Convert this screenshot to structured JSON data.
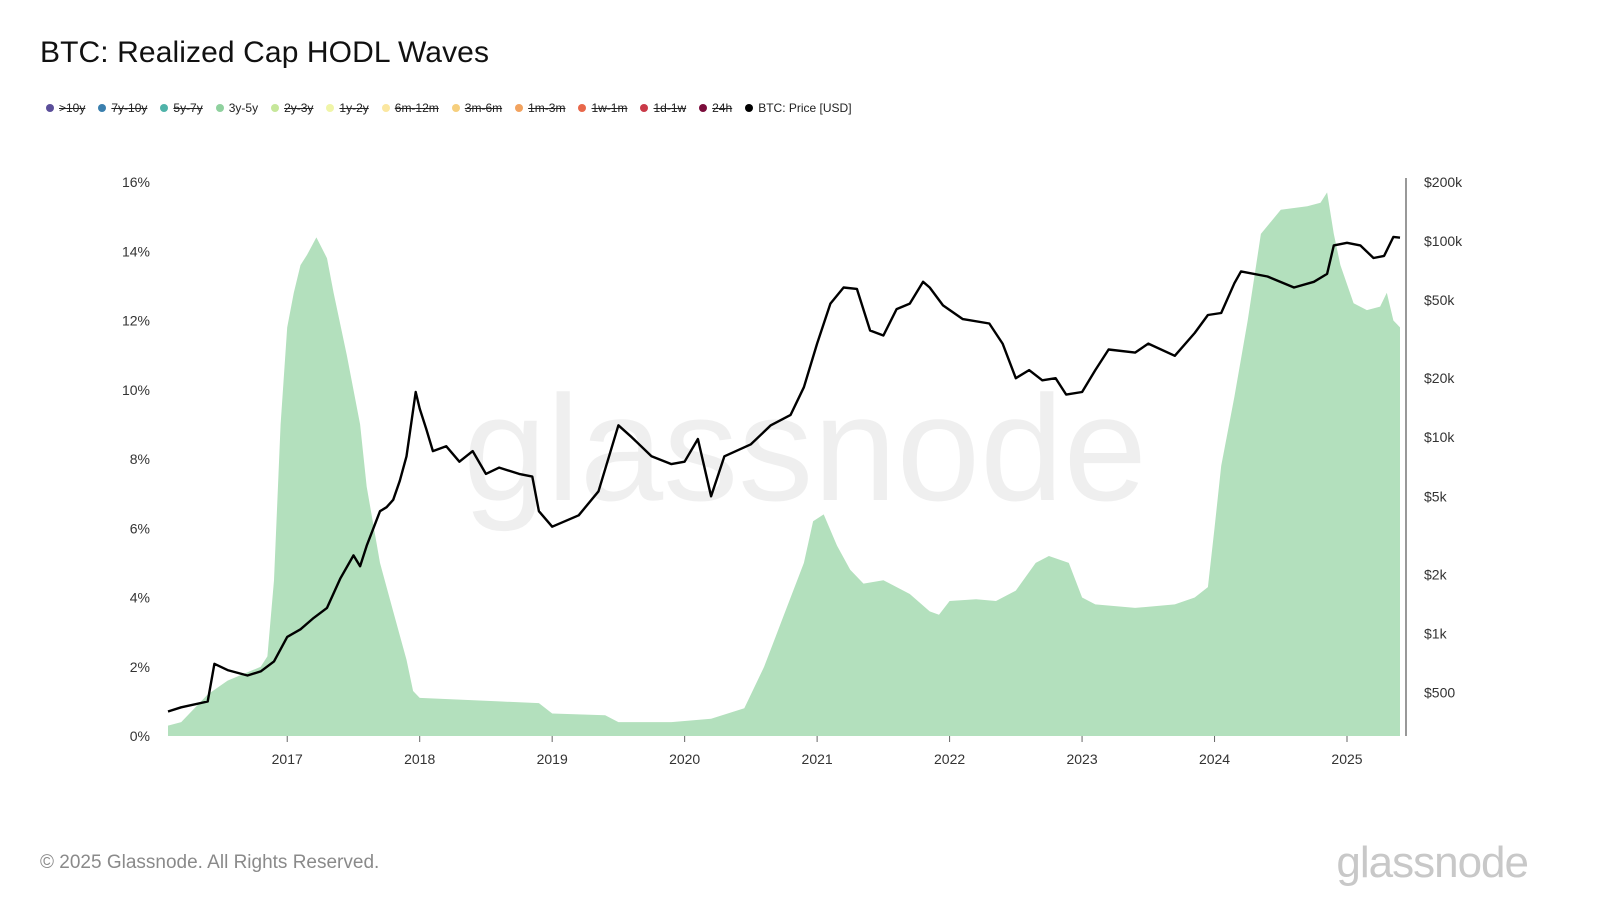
{
  "page": {
    "title": "BTC: Realized Cap HODL Waves",
    "footer": "© 2025 Glassnode. All Rights Reserved.",
    "brand": "glassnode",
    "watermark": "glassnode"
  },
  "legend": [
    {
      "label": ">10y",
      "color": "#5b4f9a",
      "active": false
    },
    {
      "label": "7y-10y",
      "color": "#3a7fae",
      "active": false
    },
    {
      "label": "5y-7y",
      "color": "#4fb3a9",
      "active": false
    },
    {
      "label": "3y-5y",
      "color": "#8fd19e",
      "active": true
    },
    {
      "label": "2y-3y",
      "color": "#c6e79a",
      "active": false
    },
    {
      "label": "1y-2y",
      "color": "#f0f5a8",
      "active": false
    },
    {
      "label": "6m-12m",
      "color": "#fbe7a0",
      "active": false
    },
    {
      "label": "3m-6m",
      "color": "#f6cf7d",
      "active": false
    },
    {
      "label": "1m-3m",
      "color": "#f2a35f",
      "active": false
    },
    {
      "label": "1w-1m",
      "color": "#e8674a",
      "active": false
    },
    {
      "label": "1d-1w",
      "color": "#c93a48",
      "active": false
    },
    {
      "label": "24h",
      "color": "#7a0c3b",
      "active": false
    },
    {
      "label": "BTC: Price [USD]",
      "color": "#000000",
      "active": true
    }
  ],
  "chart_data": {
    "type": "area",
    "x_range": [
      2016.1,
      2025.4
    ],
    "x_ticks": [
      2017,
      2018,
      2019,
      2020,
      2021,
      2022,
      2023,
      2024,
      2025
    ],
    "x_tick_labels": [
      "2017",
      "2018",
      "2019",
      "2020",
      "2021",
      "2022",
      "2023",
      "2024",
      "2025"
    ],
    "y_left": {
      "range": [
        0,
        16
      ],
      "ticks": [
        0,
        2,
        4,
        6,
        8,
        10,
        12,
        14,
        16
      ],
      "tick_labels": [
        "0%",
        "2%",
        "4%",
        "6%",
        "8%",
        "10%",
        "12%",
        "14%",
        "16%"
      ]
    },
    "y_right": {
      "scale": "log",
      "range": [
        300,
        200000
      ],
      "ticks": [
        500,
        1000,
        2000,
        5000,
        10000,
        20000,
        50000,
        100000,
        200000
      ],
      "tick_labels": [
        "$500",
        "$1k",
        "$2k",
        "$5k",
        "$10k",
        "$20k",
        "$50k",
        "$100k",
        "$200k"
      ]
    },
    "series": [
      {
        "name": "3y-5y",
        "axis": "left",
        "color": "#b3e0bd",
        "points": [
          [
            2016.1,
            0.3
          ],
          [
            2016.2,
            0.4
          ],
          [
            2016.4,
            1.2
          ],
          [
            2016.55,
            1.6
          ],
          [
            2016.8,
            2.0
          ],
          [
            2016.85,
            2.3
          ],
          [
            2016.9,
            4.5
          ],
          [
            2016.95,
            9.0
          ],
          [
            2017.0,
            11.8
          ],
          [
            2017.05,
            12.8
          ],
          [
            2017.1,
            13.6
          ],
          [
            2017.15,
            13.9
          ],
          [
            2017.22,
            14.4
          ],
          [
            2017.3,
            13.8
          ],
          [
            2017.35,
            12.8
          ],
          [
            2017.45,
            11.0
          ],
          [
            2017.55,
            9.0
          ],
          [
            2017.6,
            7.2
          ],
          [
            2017.7,
            5.0
          ],
          [
            2017.8,
            3.6
          ],
          [
            2017.9,
            2.2
          ],
          [
            2017.95,
            1.3
          ],
          [
            2018.0,
            1.1
          ],
          [
            2018.3,
            1.05
          ],
          [
            2018.6,
            1.0
          ],
          [
            2018.9,
            0.95
          ],
          [
            2019.0,
            0.65
          ],
          [
            2019.4,
            0.6
          ],
          [
            2019.5,
            0.4
          ],
          [
            2019.9,
            0.4
          ],
          [
            2020.2,
            0.5
          ],
          [
            2020.45,
            0.8
          ],
          [
            2020.6,
            2.0
          ],
          [
            2020.75,
            3.5
          ],
          [
            2020.9,
            5.0
          ],
          [
            2020.97,
            6.2
          ],
          [
            2021.05,
            6.4
          ],
          [
            2021.15,
            5.5
          ],
          [
            2021.25,
            4.8
          ],
          [
            2021.35,
            4.4
          ],
          [
            2021.5,
            4.5
          ],
          [
            2021.7,
            4.1
          ],
          [
            2021.85,
            3.6
          ],
          [
            2021.92,
            3.5
          ],
          [
            2022.0,
            3.9
          ],
          [
            2022.2,
            3.95
          ],
          [
            2022.35,
            3.9
          ],
          [
            2022.5,
            4.2
          ],
          [
            2022.65,
            5.0
          ],
          [
            2022.75,
            5.2
          ],
          [
            2022.9,
            5.0
          ],
          [
            2023.0,
            4.0
          ],
          [
            2023.1,
            3.8
          ],
          [
            2023.4,
            3.7
          ],
          [
            2023.7,
            3.8
          ],
          [
            2023.85,
            4.0
          ],
          [
            2023.95,
            4.3
          ],
          [
            2024.0,
            6.0
          ],
          [
            2024.05,
            7.8
          ],
          [
            2024.15,
            9.8
          ],
          [
            2024.25,
            12.0
          ],
          [
            2024.35,
            14.5
          ],
          [
            2024.5,
            15.2
          ],
          [
            2024.7,
            15.3
          ],
          [
            2024.8,
            15.4
          ],
          [
            2024.85,
            15.7
          ],
          [
            2024.9,
            14.5
          ],
          [
            2024.95,
            13.6
          ],
          [
            2025.05,
            12.5
          ],
          [
            2025.15,
            12.3
          ],
          [
            2025.25,
            12.4
          ],
          [
            2025.3,
            12.8
          ],
          [
            2025.35,
            12.0
          ],
          [
            2025.4,
            11.8
          ]
        ]
      },
      {
        "name": "BTC: Price [USD]",
        "axis": "right",
        "color": "#000000",
        "points": [
          [
            2016.1,
            400
          ],
          [
            2016.2,
            420
          ],
          [
            2016.4,
            450
          ],
          [
            2016.45,
            700
          ],
          [
            2016.55,
            650
          ],
          [
            2016.7,
            610
          ],
          [
            2016.8,
            640
          ],
          [
            2016.9,
            720
          ],
          [
            2017.0,
            960
          ],
          [
            2017.1,
            1050
          ],
          [
            2017.2,
            1200
          ],
          [
            2017.3,
            1350
          ],
          [
            2017.4,
            1900
          ],
          [
            2017.5,
            2500
          ],
          [
            2017.55,
            2200
          ],
          [
            2017.6,
            2800
          ],
          [
            2017.7,
            4200
          ],
          [
            2017.75,
            4400
          ],
          [
            2017.8,
            4800
          ],
          [
            2017.85,
            6000
          ],
          [
            2017.9,
            8000
          ],
          [
            2017.97,
            17000
          ],
          [
            2018.0,
            14000
          ],
          [
            2018.05,
            11000
          ],
          [
            2018.1,
            8500
          ],
          [
            2018.2,
            9000
          ],
          [
            2018.3,
            7500
          ],
          [
            2018.4,
            8500
          ],
          [
            2018.5,
            6500
          ],
          [
            2018.6,
            7000
          ],
          [
            2018.75,
            6500
          ],
          [
            2018.85,
            6300
          ],
          [
            2018.9,
            4200
          ],
          [
            2019.0,
            3500
          ],
          [
            2019.2,
            4000
          ],
          [
            2019.35,
            5300
          ],
          [
            2019.5,
            11500
          ],
          [
            2019.6,
            10000
          ],
          [
            2019.75,
            8000
          ],
          [
            2019.9,
            7300
          ],
          [
            2020.0,
            7500
          ],
          [
            2020.1,
            9800
          ],
          [
            2020.2,
            5000
          ],
          [
            2020.3,
            8000
          ],
          [
            2020.5,
            9200
          ],
          [
            2020.65,
            11500
          ],
          [
            2020.8,
            13000
          ],
          [
            2020.9,
            18000
          ],
          [
            2021.0,
            30000
          ],
          [
            2021.1,
            48000
          ],
          [
            2021.2,
            58000
          ],
          [
            2021.3,
            57000
          ],
          [
            2021.4,
            35000
          ],
          [
            2021.5,
            33000
          ],
          [
            2021.6,
            45000
          ],
          [
            2021.7,
            48000
          ],
          [
            2021.8,
            62000
          ],
          [
            2021.85,
            58000
          ],
          [
            2021.95,
            47000
          ],
          [
            2022.1,
            40000
          ],
          [
            2022.3,
            38000
          ],
          [
            2022.4,
            30000
          ],
          [
            2022.5,
            20000
          ],
          [
            2022.6,
            22000
          ],
          [
            2022.7,
            19500
          ],
          [
            2022.8,
            20000
          ],
          [
            2022.88,
            16500
          ],
          [
            2023.0,
            17000
          ],
          [
            2023.1,
            22000
          ],
          [
            2023.2,
            28000
          ],
          [
            2023.4,
            27000
          ],
          [
            2023.5,
            30000
          ],
          [
            2023.7,
            26000
          ],
          [
            2023.85,
            34000
          ],
          [
            2023.95,
            42000
          ],
          [
            2024.05,
            43000
          ],
          [
            2024.15,
            61000
          ],
          [
            2024.2,
            70000
          ],
          [
            2024.4,
            66000
          ],
          [
            2024.6,
            58000
          ],
          [
            2024.75,
            62000
          ],
          [
            2024.85,
            68000
          ],
          [
            2024.9,
            95000
          ],
          [
            2025.0,
            98000
          ],
          [
            2025.1,
            95000
          ],
          [
            2025.2,
            82000
          ],
          [
            2025.28,
            84000
          ],
          [
            2025.35,
            105000
          ],
          [
            2025.4,
            104000
          ]
        ]
      }
    ]
  }
}
